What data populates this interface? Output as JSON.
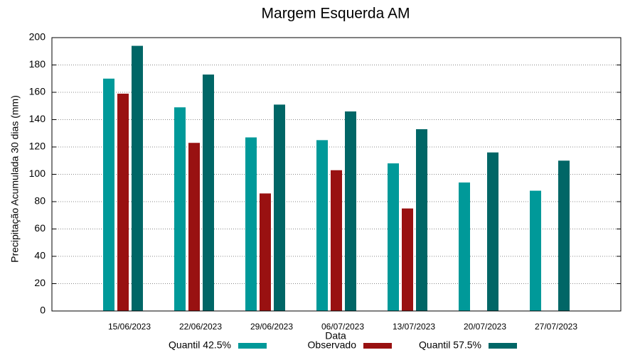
{
  "chart_data": {
    "type": "bar",
    "title": "Margem Esquerda AM",
    "x_label": "Data",
    "y_label": "Precipitação Acumulada 30 dias (mm)",
    "categories": [
      "15/06/2023",
      "22/06/2023",
      "29/06/2023",
      "06/07/2023",
      "13/07/2023",
      "20/07/2023",
      "27/07/2023"
    ],
    "series": [
      {
        "name": "Quantil 42.5%",
        "color": "#009999",
        "values": [
          170,
          149,
          127,
          125,
          108,
          94,
          88
        ]
      },
      {
        "name": "Observado",
        "color": "#991111",
        "values": [
          159,
          123,
          86,
          103,
          75,
          null,
          null
        ]
      },
      {
        "name": "Quantil 57.5%",
        "color": "#006666",
        "values": [
          194,
          173,
          151,
          146,
          133,
          116,
          110
        ]
      }
    ],
    "ylim": [
      0,
      200
    ],
    "yticks": [
      0,
      20,
      40,
      60,
      80,
      100,
      120,
      140,
      160,
      180,
      200
    ],
    "grid": true,
    "legend": "bottom"
  }
}
